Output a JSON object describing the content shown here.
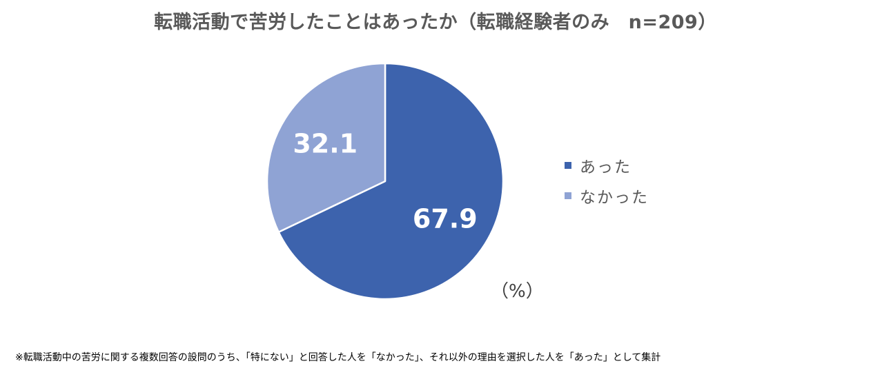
{
  "chart_data": {
    "type": "pie",
    "title": "転職活動で苦労したことはあったか（転職経験者のみ　n=209）",
    "categories": [
      "あった",
      "なかった"
    ],
    "values": [
      67.9,
      32.1
    ],
    "value_labels": [
      "67.9",
      "32.1"
    ],
    "colors": [
      "#3d63ad",
      "#8fa3d4"
    ],
    "start_angle_deg": 0,
    "direction": "clockwise",
    "legend_position": "right",
    "unit": "（%）"
  },
  "footnote": "※転職活動中の苦労に関する複数回答の設問のうち、「特にない」と回答した人を「なかった」、それ以外の理由を選択した人を「あった」として集計"
}
